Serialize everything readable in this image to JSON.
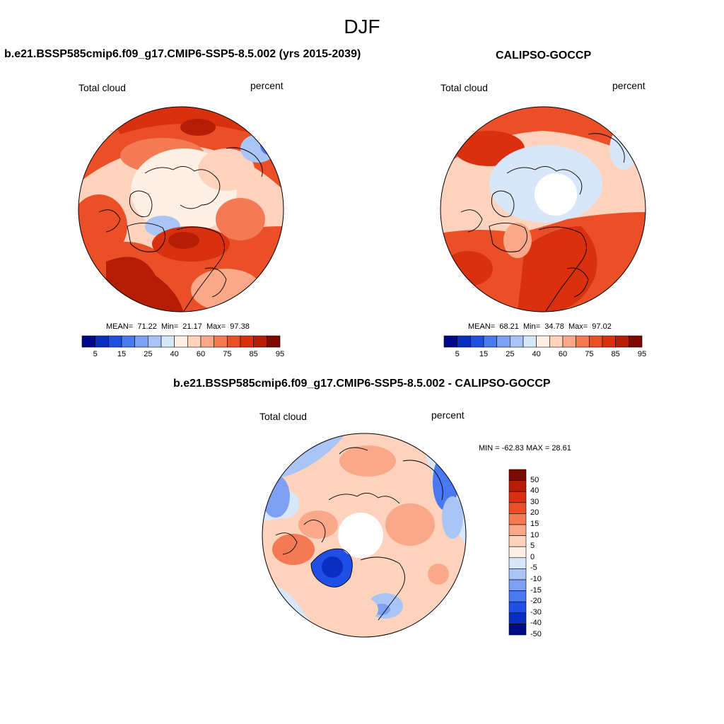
{
  "season": "DJF",
  "panels": [
    {
      "title": "b.e21.BSSP585cmip6.f09_g17.CMIP6-SSP5-8.5.002 (yrs 2015-2039)",
      "left_label": "Total cloud",
      "right_label": "percent",
      "stats": {
        "mean_label": "MEAN=",
        "mean": "71.22",
        "min_label": "Min=",
        "min": "21.17",
        "max_label": "Max=",
        "max": "97.38"
      },
      "colorbar_labels": [
        "5",
        "15",
        "25",
        "40",
        "60",
        "75",
        "85",
        "95"
      ]
    },
    {
      "title": "CALIPSO-GOCCP",
      "left_label": "Total cloud",
      "right_label": "percent",
      "stats": {
        "mean_label": "MEAN=",
        "mean": "68.21",
        "min_label": "Min=",
        "min": "34.78",
        "max_label": "Max=",
        "max": "97.02"
      },
      "colorbar_labels": [
        "5",
        "15",
        "25",
        "40",
        "60",
        "75",
        "85",
        "95"
      ]
    },
    {
      "title": "b.e21.BSSP585cmip6.f09_g17.CMIP6-SSP5-8.5.002 - CALIPSO-GOCCP",
      "left_label": "Total cloud",
      "right_label": "percent",
      "stats_text": "MIN = -62.83 MAX =  28.61",
      "colorbar_labels": [
        "50",
        "40",
        "30",
        "20",
        "15",
        "10",
        "5",
        "0",
        "-5",
        "-10",
        "-15",
        "-20",
        "-30",
        "-40",
        "-50"
      ]
    }
  ],
  "colors": {
    "abs_scale": [
      "#000a84",
      "#0a2ec0",
      "#1f4fe6",
      "#4a78f0",
      "#7da0f2",
      "#aac4f5",
      "#d8e6fa",
      "#fff0e6",
      "#fdd3bd",
      "#f9a98a",
      "#f47a55",
      "#ea4f28",
      "#d9300f",
      "#b51d07",
      "#7a0a02"
    ],
    "diff_scale": [
      "#7a0a02",
      "#b51d07",
      "#d9300f",
      "#ea4f28",
      "#f47a55",
      "#f9a98a",
      "#fdd3bd",
      "#fff0e6",
      "#d8e6fa",
      "#aac4f5",
      "#7da0f2",
      "#4a78f0",
      "#1f4fe6",
      "#0a2ec0",
      "#000a84"
    ]
  }
}
